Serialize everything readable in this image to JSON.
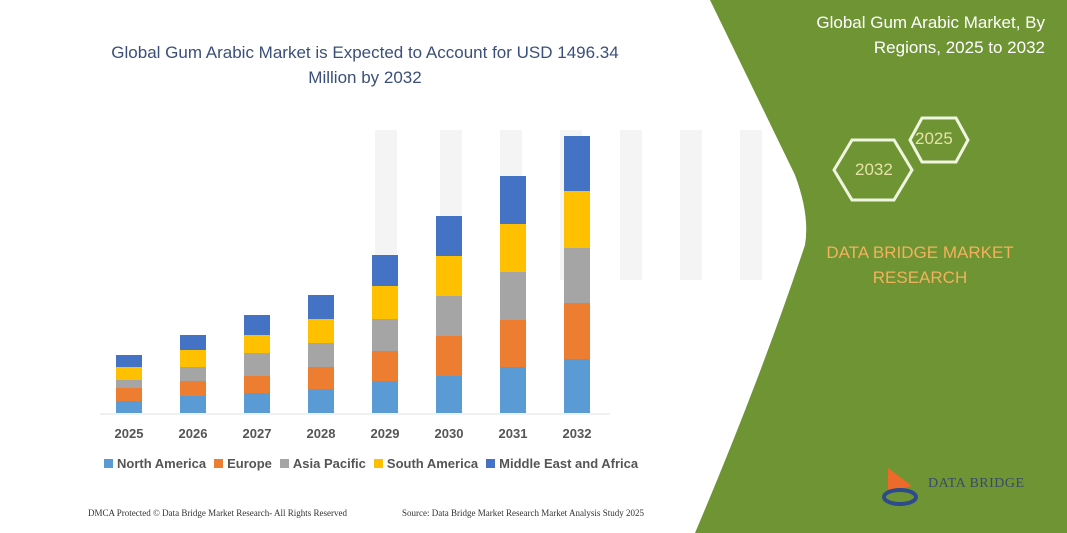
{
  "header": {
    "title": "Global Gum Arabic Market is Expected to Account for USD 1496.34 Million by 2032"
  },
  "side_panel": {
    "title": "Global Gum Arabic Market, By Regions, 2025 to 2032",
    "hex_labels": [
      "2025",
      "2032"
    ],
    "brand_text": "DATA BRIDGE MARKET RESEARCH",
    "logo_text": "DATA BRIDGE",
    "colors": {
      "panel": "#6e9434",
      "brand_text": "#f2b25c"
    }
  },
  "footer": {
    "left": "DMCA Protected © Data Bridge Market Research- All Rights Reserved",
    "right": "Source: Data Bridge Market Research Market Analysis Study 2025"
  },
  "chart_data": {
    "type": "bar",
    "stacked": true,
    "title": "",
    "xlabel": "",
    "ylabel": "",
    "y_axis_shown": false,
    "grid": false,
    "legend_position": "bottom",
    "categories": [
      "2025",
      "2026",
      "2027",
      "2028",
      "2029",
      "2030",
      "2031",
      "2032"
    ],
    "series": [
      {
        "name": "North America",
        "color": "#5b9bd5",
        "values": [
          12,
          17,
          20,
          24,
          32,
          37,
          46,
          54
        ]
      },
      {
        "name": "Europe",
        "color": "#ed7d31",
        "values": [
          13,
          15,
          17,
          22,
          30,
          40,
          47,
          56
        ]
      },
      {
        "name": "Asia Pacific",
        "color": "#a5a5a5",
        "values": [
          8,
          14,
          23,
          24,
          32,
          40,
          48,
          55
        ]
      },
      {
        "name": "South America",
        "color": "#ffc000",
        "values": [
          13,
          17,
          18,
          24,
          33,
          40,
          48,
          57
        ]
      },
      {
        "name": "Middle East and Africa",
        "color": "#4472c4",
        "values": [
          12,
          15,
          20,
          24,
          31,
          40,
          48,
          55
        ]
      }
    ]
  }
}
